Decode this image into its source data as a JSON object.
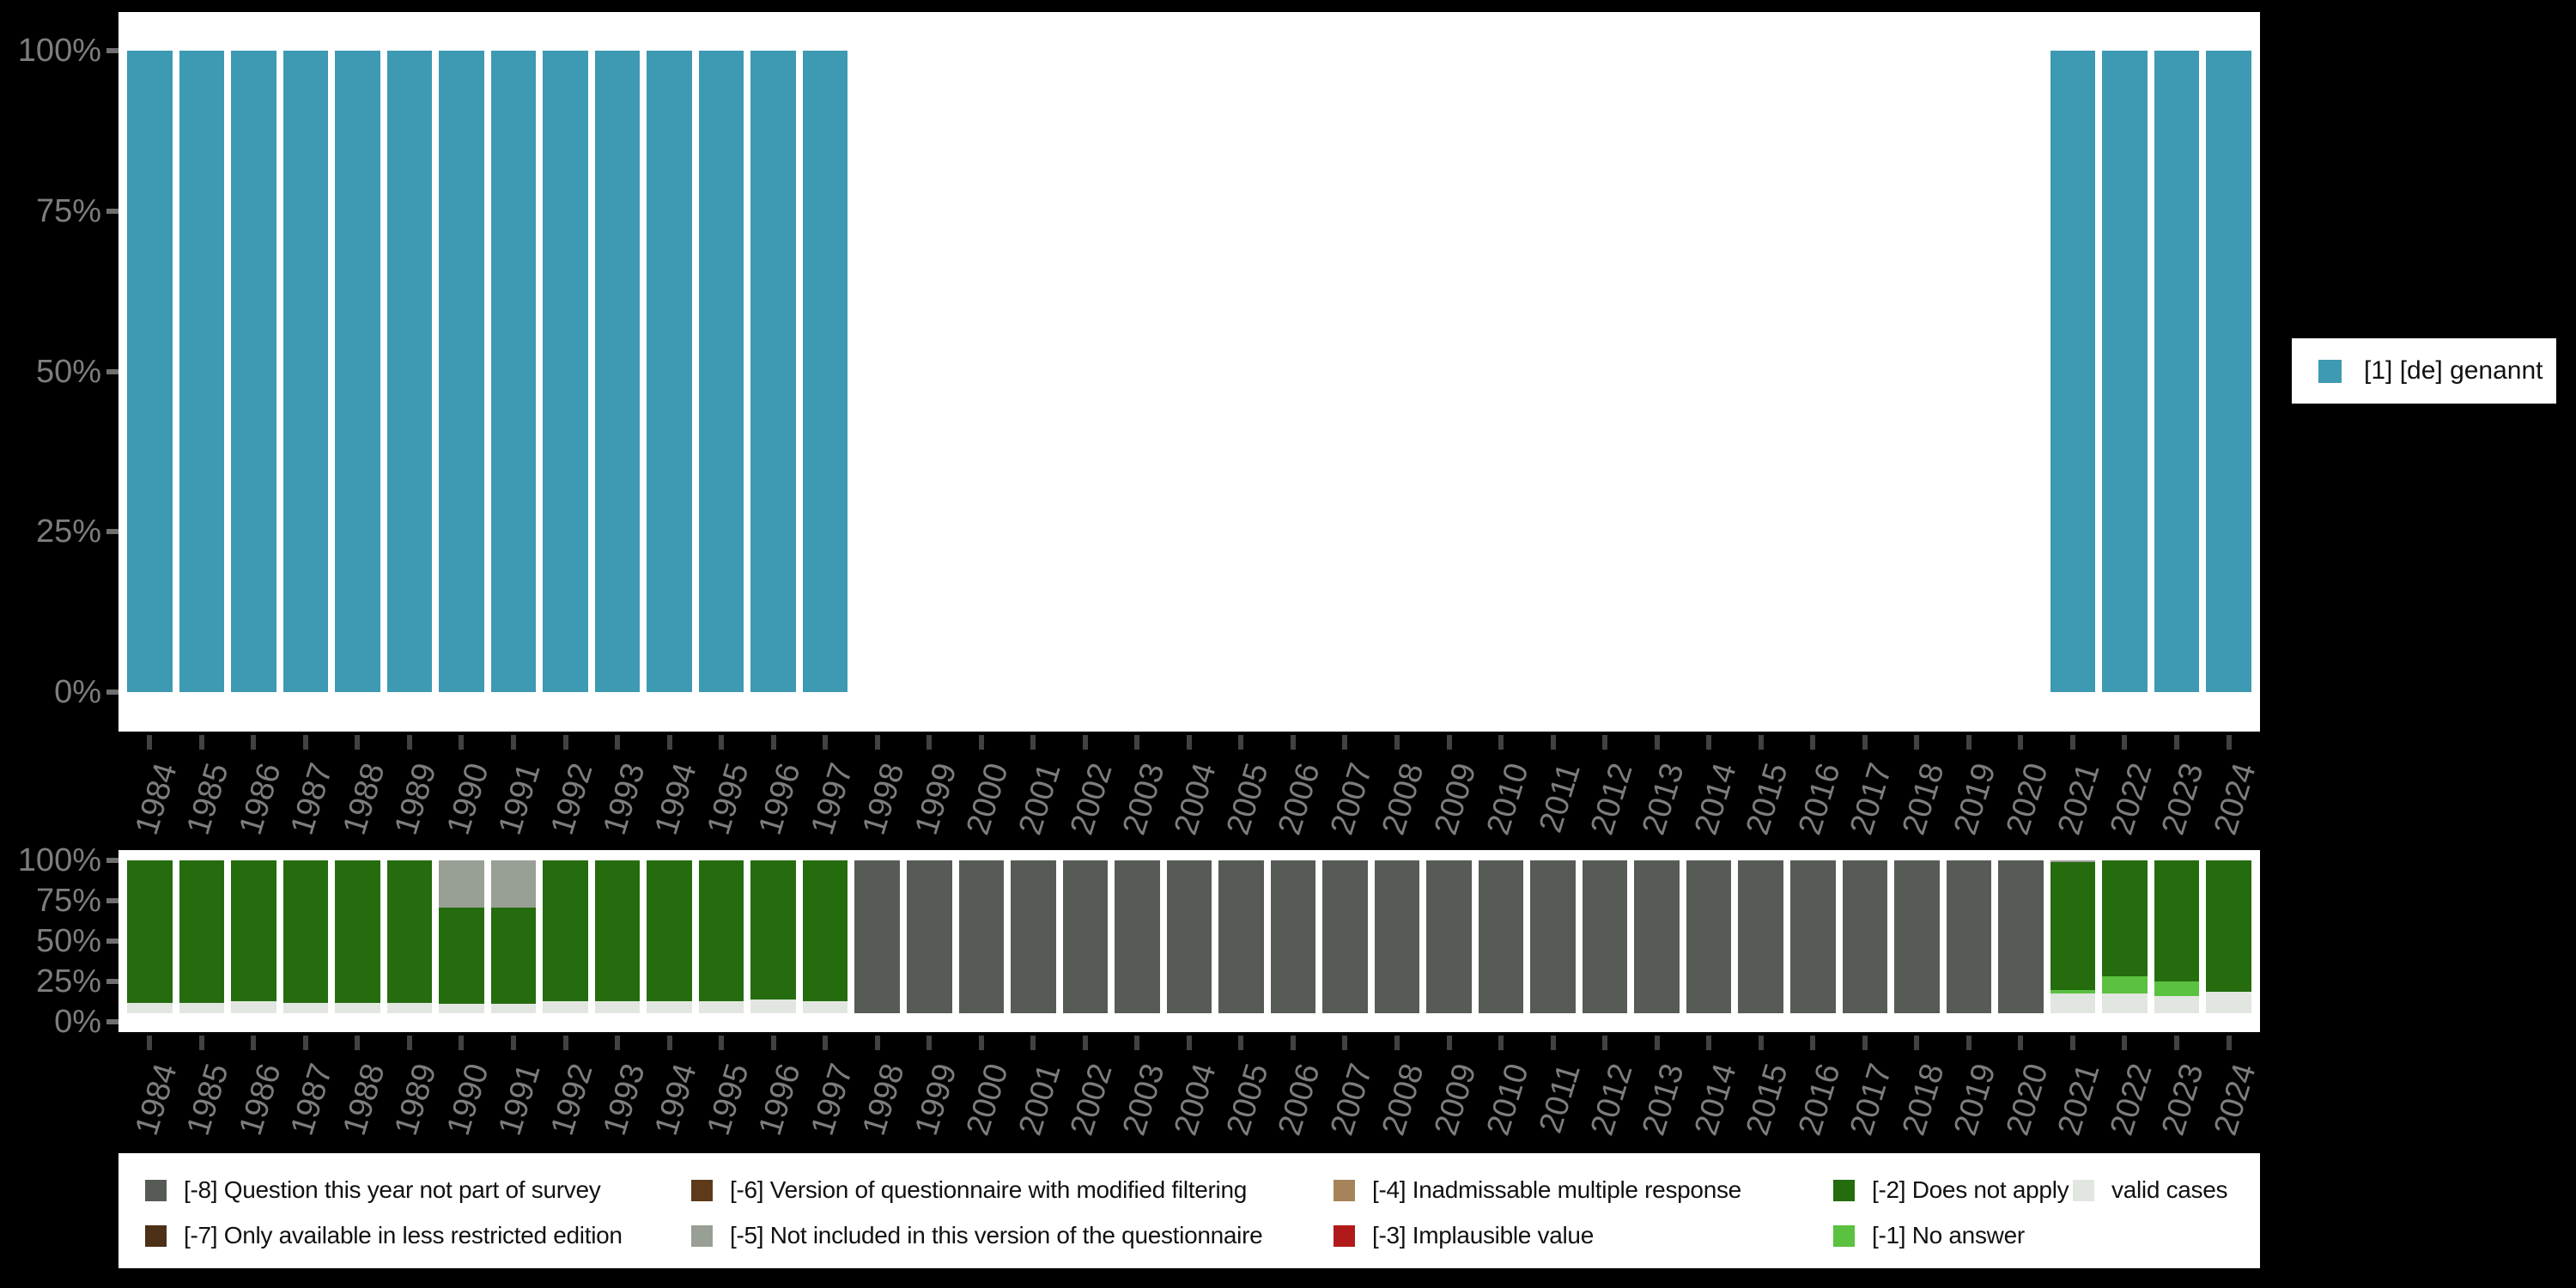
{
  "colors": {
    "background": "#000000",
    "panel": "#ffffff",
    "axis_text": "#7d7d7d",
    "x_tick": "#424242",
    "y_tick": "#6f6f6f",
    "teal": "#3d9ab2",
    "categories": {
      "-8": "#565c55",
      "-7": "#4c3018",
      "-6": "#5e3a1b",
      "-5": "#989f95",
      "-4": "#a6835a",
      "-3": "#b11a1a",
      "-2": "#246c0e",
      "-1": "#5bc140",
      "valid": "#e2e6e0"
    }
  },
  "years": [
    "1984",
    "1985",
    "1986",
    "1987",
    "1988",
    "1989",
    "1990",
    "1991",
    "1992",
    "1993",
    "1994",
    "1995",
    "1996",
    "1997",
    "1998",
    "1999",
    "2000",
    "2001",
    "2002",
    "2003",
    "2004",
    "2005",
    "2006",
    "2007",
    "2008",
    "2009",
    "2010",
    "2011",
    "2012",
    "2013",
    "2014",
    "2015",
    "2016",
    "2017",
    "2018",
    "2019",
    "2020",
    "2021",
    "2022",
    "2023",
    "2024"
  ],
  "top_legend": {
    "label": "[1] [de] genannt",
    "color": "#3d9ab2"
  },
  "chart_data": [
    {
      "type": "bar",
      "title": "",
      "xlabel": "",
      "ylabel": "",
      "ylim": [
        0,
        100
      ],
      "grid": false,
      "legend_position": "right",
      "yticks": [
        "0%",
        "25%",
        "50%",
        "75%",
        "100%"
      ],
      "categories": [
        "1984",
        "1985",
        "1986",
        "1987",
        "1988",
        "1989",
        "1990",
        "1991",
        "1992",
        "1993",
        "1994",
        "1995",
        "1996",
        "1997",
        "1998",
        "1999",
        "2000",
        "2001",
        "2002",
        "2003",
        "2004",
        "2005",
        "2006",
        "2007",
        "2008",
        "2009",
        "2010",
        "2011",
        "2012",
        "2013",
        "2014",
        "2015",
        "2016",
        "2017",
        "2018",
        "2019",
        "2020",
        "2021",
        "2022",
        "2023",
        "2024"
      ],
      "series": [
        {
          "name": "[1] [de] genannt",
          "key": "p1",
          "color": "#3d9ab2",
          "values": [
            100,
            100,
            100,
            100,
            100,
            100,
            100,
            100,
            100,
            100,
            100,
            100,
            100,
            100,
            null,
            null,
            null,
            null,
            null,
            null,
            null,
            null,
            null,
            null,
            null,
            null,
            null,
            null,
            null,
            null,
            null,
            null,
            null,
            null,
            null,
            null,
            null,
            100,
            100,
            100,
            100
          ]
        }
      ]
    },
    {
      "type": "bar",
      "stacked": true,
      "title": "",
      "xlabel": "",
      "ylabel": "",
      "ylim": [
        0,
        100
      ],
      "grid": false,
      "legend_position": "bottom",
      "yticks": [
        "0%",
        "25%",
        "50%",
        "75%",
        "100%"
      ],
      "categories": [
        "1984",
        "1985",
        "1986",
        "1987",
        "1988",
        "1989",
        "1990",
        "1991",
        "1992",
        "1993",
        "1994",
        "1995",
        "1996",
        "1997",
        "1998",
        "1999",
        "2000",
        "2001",
        "2002",
        "2003",
        "2004",
        "2005",
        "2006",
        "2007",
        "2008",
        "2009",
        "2010",
        "2011",
        "2012",
        "2013",
        "2014",
        "2015",
        "2016",
        "2017",
        "2018",
        "2019",
        "2020",
        "2021",
        "2022",
        "2023",
        "2024"
      ],
      "series": [
        {
          "name": "valid cases",
          "key": "valid",
          "color": "#e2e6e0",
          "values": [
            7,
            7,
            8,
            7,
            7,
            7,
            6,
            6,
            8,
            8,
            8,
            8,
            9,
            8,
            0,
            0,
            0,
            0,
            0,
            0,
            0,
            0,
            0,
            0,
            0,
            0,
            0,
            0,
            0,
            0,
            0,
            0,
            0,
            0,
            0,
            0,
            0,
            13,
            13,
            11,
            14
          ]
        },
        {
          "name": "[-1] No answer",
          "key": "-1",
          "color": "#5bc140",
          "values": [
            0,
            0,
            0,
            0,
            0,
            0,
            0,
            0,
            0,
            0,
            0,
            0,
            0,
            0,
            0,
            0,
            0,
            0,
            0,
            0,
            0,
            0,
            0,
            0,
            0,
            0,
            0,
            0,
            0,
            0,
            0,
            0,
            0,
            0,
            0,
            0,
            0,
            2,
            11,
            10,
            0
          ]
        },
        {
          "name": "[-2] Does not apply",
          "key": "-2",
          "color": "#246c0e",
          "values": [
            93,
            93,
            92,
            93,
            93,
            93,
            63,
            63,
            92,
            92,
            92,
            92,
            91,
            92,
            0,
            0,
            0,
            0,
            0,
            0,
            0,
            0,
            0,
            0,
            0,
            0,
            0,
            0,
            0,
            0,
            0,
            0,
            0,
            0,
            0,
            0,
            0,
            84,
            76,
            79,
            86
          ]
        },
        {
          "name": "[-5] Not included in this version of the questionnaire",
          "key": "-5",
          "color": "#989f95",
          "values": [
            0,
            0,
            0,
            0,
            0,
            0,
            31,
            31,
            0,
            0,
            0,
            0,
            0,
            0,
            0,
            0,
            0,
            0,
            0,
            0,
            0,
            0,
            0,
            0,
            0,
            0,
            0,
            0,
            0,
            0,
            0,
            0,
            0,
            0,
            0,
            0,
            0,
            1,
            0,
            0,
            0
          ]
        },
        {
          "name": "[-8] Question this year not part of survey",
          "key": "-8",
          "color": "#565c55",
          "values": [
            0,
            0,
            0,
            0,
            0,
            0,
            0,
            0,
            0,
            0,
            0,
            0,
            0,
            0,
            100,
            100,
            100,
            100,
            100,
            100,
            100,
            100,
            100,
            100,
            100,
            100,
            100,
            100,
            100,
            100,
            100,
            100,
            100,
            100,
            100,
            100,
            100,
            0,
            0,
            0,
            0
          ]
        }
      ]
    }
  ],
  "bottom_legend": {
    "items": [
      {
        "code": "-8",
        "label": "[-8] Question this year not part of survey",
        "color": "#565c55",
        "row": 0,
        "col": 0
      },
      {
        "code": "-7",
        "label": "[-7] Only available in less restricted edition",
        "color": "#4c3018",
        "row": 1,
        "col": 0
      },
      {
        "code": "-6",
        "label": "[-6] Version of questionnaire with modified filtering",
        "color": "#5e3a1b",
        "row": 0,
        "col": 1
      },
      {
        "code": "-5",
        "label": "[-5] Not included in this version of the questionnaire",
        "color": "#989f95",
        "row": 1,
        "col": 1
      },
      {
        "code": "-4",
        "label": "[-4] Inadmissable multiple response",
        "color": "#a6835a",
        "row": 0,
        "col": 2
      },
      {
        "code": "-3",
        "label": "[-3] Implausible value",
        "color": "#b11a1a",
        "row": 1,
        "col": 2
      },
      {
        "code": "-2",
        "label": "[-2] Does not apply",
        "color": "#246c0e",
        "row": 0,
        "col": 3
      },
      {
        "code": "-1",
        "label": "[-1] No answer",
        "color": "#5bc140",
        "row": 1,
        "col": 3
      },
      {
        "code": "valid",
        "label": "valid cases",
        "color": "#e2e6e0",
        "row": 0,
        "col": 4
      }
    ]
  }
}
